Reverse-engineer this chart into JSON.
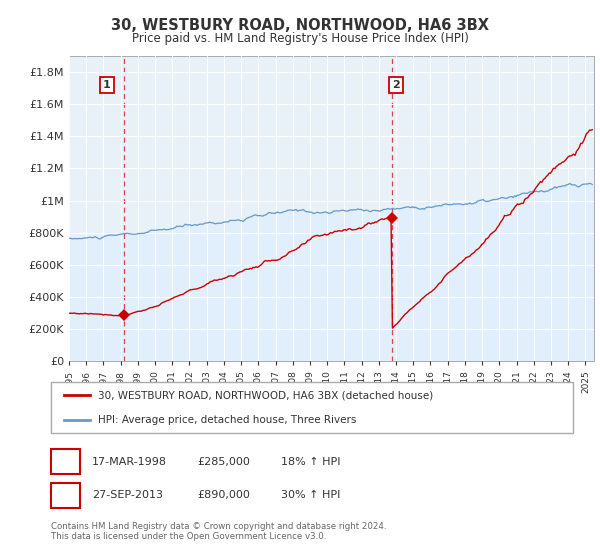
{
  "title": "30, WESTBURY ROAD, NORTHWOOD, HA6 3BX",
  "subtitle": "Price paid vs. HM Land Registry's House Price Index (HPI)",
  "ytick_values": [
    0,
    200000,
    400000,
    600000,
    800000,
    1000000,
    1200000,
    1400000,
    1600000,
    1800000
  ],
  "ylim": [
    0,
    1900000
  ],
  "xmin": 1995.0,
  "xmax": 2025.5,
  "sale1_date": 1998.21,
  "sale1_price": 285000,
  "sale2_date": 2013.74,
  "sale2_price": 890000,
  "red_color": "#cc0000",
  "blue_color": "#6699cc",
  "blue_fill": "#ddeeff",
  "dashed_color": "#dd4444",
  "legend1": "30, WESTBURY ROAD, NORTHWOOD, HA6 3BX (detached house)",
  "legend2": "HPI: Average price, detached house, Three Rivers",
  "table_row1": [
    "1",
    "17-MAR-1998",
    "£285,000",
    "18% ↑ HPI"
  ],
  "table_row2": [
    "2",
    "27-SEP-2013",
    "£890,000",
    "30% ↑ HPI"
  ],
  "footer": "Contains HM Land Registry data © Crown copyright and database right 2024.\nThis data is licensed under the Open Government Licence v3.0.",
  "background_color": "#ffffff",
  "plot_bg_color": "#e8f0f8",
  "grid_color": "#ffffff"
}
